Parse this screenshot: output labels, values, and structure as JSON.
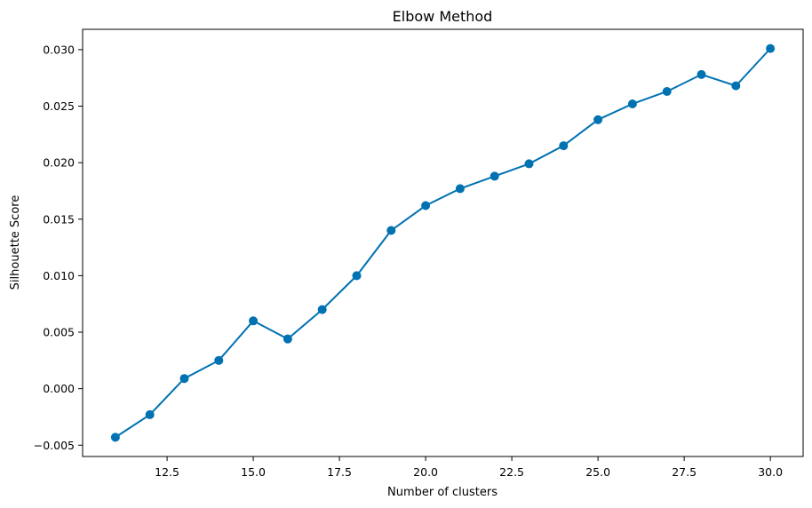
{
  "chart_data": {
    "type": "line",
    "title": "Elbow Method",
    "xlabel": "Number of clusters",
    "ylabel": "Silhouette Score",
    "x": [
      11,
      12,
      13,
      14,
      15,
      16,
      17,
      18,
      19,
      20,
      21,
      22,
      23,
      24,
      25,
      26,
      27,
      28,
      29,
      30
    ],
    "series": [
      {
        "values": [
          -0.0043,
          -0.0023,
          0.0009,
          0.0025,
          0.006,
          0.0044,
          0.007,
          0.01,
          0.014,
          0.0162,
          0.0177,
          0.0188,
          0.0199,
          0.0215,
          0.0238,
          0.0252,
          0.0263,
          0.0278,
          0.0268,
          0.0301
        ],
        "color": "#0072B2",
        "marker": "circle"
      }
    ],
    "xlim": [
      10.05,
      30.95
    ],
    "ylim": [
      -0.006,
      0.0318
    ],
    "xticks": [
      12.5,
      15.0,
      17.5,
      20.0,
      22.5,
      25.0,
      27.5,
      30.0
    ],
    "xtick_labels": [
      "12.5",
      "15.0",
      "17.5",
      "20.0",
      "22.5",
      "25.0",
      "27.5",
      "30.0"
    ],
    "yticks": [
      -0.005,
      0.0,
      0.005,
      0.01,
      0.015,
      0.02,
      0.025,
      0.03
    ],
    "ytick_labels": [
      "−0.005",
      "0.000",
      "0.005",
      "0.010",
      "0.015",
      "0.020",
      "0.025",
      "0.030"
    ],
    "grid": false,
    "legend": "none"
  }
}
